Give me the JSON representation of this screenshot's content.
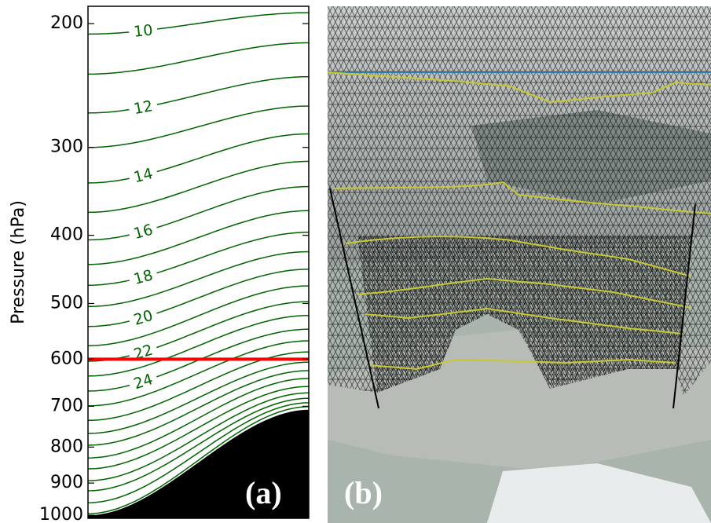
{
  "chart_data": {
    "type": "line",
    "ylabel": "Pressure (hPa)",
    "ylim": [
      189,
      1010
    ],
    "log_y": true,
    "y_inverted": true,
    "yticks": [
      200,
      300,
      400,
      500,
      600,
      700,
      800,
      900,
      1000
    ],
    "color": "#006400",
    "lines": {
      "p_left": [
        207,
        236,
        268,
        300,
        337,
        371,
        406,
        440,
        471,
        505,
        539,
        574,
        604,
        634,
        666,
        699,
        733,
        765,
        795,
        829,
        859,
        893,
        923,
        960,
        995
      ],
      "p_right": [
        193,
        213,
        238,
        262,
        287,
        314,
        341,
        369,
        396,
        422,
        447,
        472,
        497,
        520,
        544,
        565,
        586,
        606,
        623,
        639,
        656,
        670,
        682,
        692,
        701
      ]
    },
    "contour_labels": [
      10,
      12,
      14,
      16,
      18,
      20,
      22,
      24
    ],
    "surface": {
      "p_left": 1000,
      "p_right": 708,
      "color": "#000000"
    },
    "highlight": {
      "value": 600,
      "color": "#ff0000"
    },
    "panel_label": "(a)"
  },
  "panel_b": {
    "label": "(b)"
  }
}
